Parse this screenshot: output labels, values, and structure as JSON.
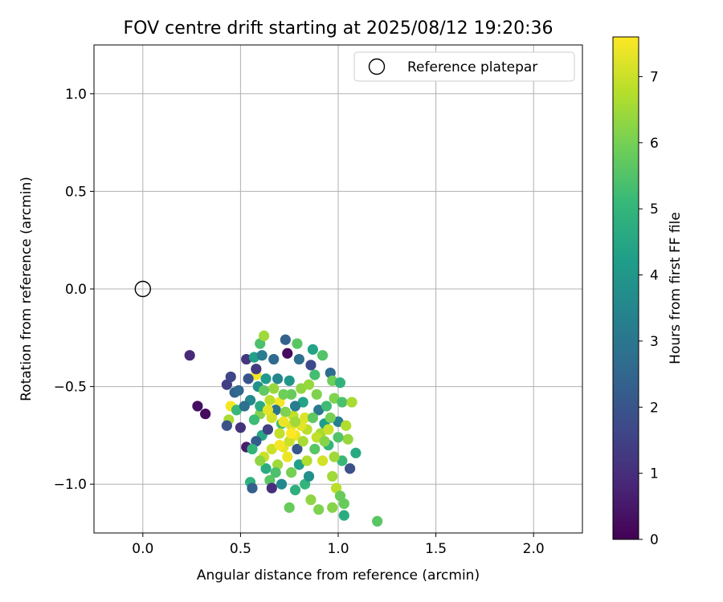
{
  "chart_data": {
    "type": "scatter",
    "title": "FOV centre drift starting at 2025/08/12 19:20:36",
    "xlabel": "Angular distance from reference (arcmin)",
    "ylabel": "Rotation from reference (arcmin)",
    "xlim": [
      -0.25,
      2.25
    ],
    "ylim": [
      -1.25,
      1.25
    ],
    "xticks": [
      0.0,
      0.5,
      1.0,
      1.5,
      2.0
    ],
    "xtick_labels": [
      "0.0",
      "0.5",
      "1.0",
      "1.5",
      "2.0"
    ],
    "yticks": [
      -1.0,
      -0.5,
      0.0,
      0.5,
      1.0
    ],
    "ytick_labels": [
      "−1.0",
      "−0.5",
      "0.0",
      "0.5",
      "1.0"
    ],
    "grid": true,
    "legend": {
      "placement": "top-right",
      "entries": [
        "Reference platepar"
      ]
    },
    "colorbar": {
      "label": "Hours from first FF file",
      "range": [
        0,
        7.6
      ],
      "ticks": [
        0,
        1,
        2,
        3,
        4,
        5,
        6,
        7
      ],
      "tick_labels": [
        "0",
        "1",
        "2",
        "3",
        "4",
        "5",
        "6",
        "7"
      ],
      "colormap": "viridis",
      "colors": [
        "#440154",
        "#482878",
        "#3e4989",
        "#31688e",
        "#26828e",
        "#1f9e89",
        "#35b779",
        "#6ece58",
        "#b5de2b",
        "#fde725"
      ]
    },
    "series": [
      {
        "name": "Reference platepar",
        "marker": "open-circle",
        "points": [
          [
            0.0,
            0.0,
            null
          ]
        ]
      },
      {
        "marker": "filled-circle",
        "points": [
          [
            0.24,
            -0.34,
            0.9
          ],
          [
            0.28,
            -0.6,
            0.3
          ],
          [
            0.32,
            -0.64,
            0.2
          ],
          [
            0.43,
            -0.49,
            1.4
          ],
          [
            0.45,
            -0.45,
            1.6
          ],
          [
            0.47,
            -0.53,
            2.4
          ],
          [
            0.44,
            -0.67,
            6.6
          ],
          [
            0.45,
            -0.6,
            7.5
          ],
          [
            0.48,
            -0.62,
            5.1
          ],
          [
            0.43,
            -0.7,
            1.9
          ],
          [
            0.53,
            -0.36,
            1.2
          ],
          [
            0.53,
            -0.81,
            0.6
          ],
          [
            0.55,
            -0.99,
            4.9
          ],
          [
            0.56,
            -1.02,
            2.3
          ],
          [
            0.57,
            -0.35,
            4.3
          ],
          [
            0.58,
            -0.44,
            7.5
          ],
          [
            0.6,
            -0.28,
            5.4
          ],
          [
            0.62,
            -0.24,
            6.5
          ],
          [
            0.61,
            -0.34,
            3.2
          ],
          [
            0.59,
            -0.5,
            3.8
          ],
          [
            0.6,
            -0.64,
            6.2
          ],
          [
            0.61,
            -0.75,
            4.5
          ],
          [
            0.62,
            -0.86,
            7.0
          ],
          [
            0.63,
            -0.92,
            4.7
          ],
          [
            0.65,
            -0.98,
            5.6
          ],
          [
            0.66,
            -1.02,
            1.0
          ],
          [
            0.67,
            -0.36,
            2.6
          ],
          [
            0.69,
            -0.46,
            3.5
          ],
          [
            0.7,
            -0.58,
            7.5
          ],
          [
            0.71,
            -0.69,
            5.2
          ],
          [
            0.72,
            -0.81,
            7.3
          ],
          [
            0.73,
            -0.26,
            2.4
          ],
          [
            0.74,
            -0.33,
            0.2
          ],
          [
            0.75,
            -0.47,
            4.0
          ],
          [
            0.76,
            -0.54,
            5.8
          ],
          [
            0.77,
            -0.65,
            6.9
          ],
          [
            0.78,
            -0.75,
            7.4
          ],
          [
            0.79,
            -0.28,
            5.6
          ],
          [
            0.8,
            -0.36,
            2.8
          ],
          [
            0.81,
            -0.51,
            6.3
          ],
          [
            0.82,
            -0.58,
            4.4
          ],
          [
            0.83,
            -0.66,
            7.2
          ],
          [
            0.84,
            -0.72,
            6.8
          ],
          [
            0.86,
            -0.39,
            1.7
          ],
          [
            0.87,
            -0.31,
            4.4
          ],
          [
            0.88,
            -0.44,
            5.3
          ],
          [
            0.89,
            -0.54,
            6.1
          ],
          [
            0.9,
            -0.62,
            3.1
          ],
          [
            0.91,
            -0.74,
            6.6
          ],
          [
            0.92,
            -0.34,
            5.5
          ],
          [
            0.96,
            -0.43,
            2.7
          ],
          [
            0.97,
            -0.47,
            5.9
          ],
          [
            1.01,
            -0.48,
            4.9
          ],
          [
            0.98,
            -0.56,
            6.1
          ],
          [
            1.02,
            -0.58,
            5.4
          ],
          [
            1.07,
            -0.58,
            6.6
          ],
          [
            1.0,
            -0.68,
            3.3
          ],
          [
            1.04,
            -0.7,
            6.7
          ],
          [
            1.05,
            -0.77,
            6.4
          ],
          [
            1.09,
            -0.84,
            4.6
          ],
          [
            1.06,
            -0.92,
            1.9
          ],
          [
            1.02,
            -0.88,
            5.1
          ],
          [
            0.98,
            -0.86,
            6.5
          ],
          [
            0.95,
            -0.8,
            5.0
          ],
          [
            0.97,
            -0.96,
            6.5
          ],
          [
            0.99,
            -1.02,
            6.8
          ],
          [
            1.01,
            -1.06,
            5.8
          ],
          [
            1.03,
            -1.1,
            5.8
          ],
          [
            1.03,
            -1.16,
            4.7
          ],
          [
            0.97,
            -1.12,
            6.2
          ],
          [
            0.9,
            -1.13,
            6.1
          ],
          [
            0.86,
            -1.08,
            6.3
          ],
          [
            0.83,
            -1.0,
            5.0
          ],
          [
            0.78,
            -1.03,
            4.8
          ],
          [
            0.75,
            -1.12,
            5.8
          ],
          [
            1.2,
            -1.19,
            5.6
          ],
          [
            0.55,
            -0.57,
            3.6
          ],
          [
            0.57,
            -0.67,
            5.2
          ],
          [
            0.58,
            -0.78,
            2.2
          ],
          [
            0.64,
            -0.72,
            1.5
          ],
          [
            0.66,
            -0.82,
            7.0
          ],
          [
            0.68,
            -0.62,
            2.9
          ],
          [
            0.69,
            -0.9,
            6.5
          ],
          [
            0.71,
            -1.0,
            3.6
          ],
          [
            0.74,
            -0.86,
            7.4
          ],
          [
            0.76,
            -0.94,
            6.0
          ],
          [
            0.79,
            -0.82,
            2.1
          ],
          [
            0.8,
            -0.9,
            4.3
          ],
          [
            0.84,
            -0.88,
            6.7
          ],
          [
            0.85,
            -0.96,
            3.8
          ],
          [
            0.88,
            -0.82,
            5.6
          ],
          [
            0.92,
            -0.88,
            7.1
          ],
          [
            0.93,
            -0.69,
            4.2
          ],
          [
            0.95,
            -0.72,
            7.0
          ],
          [
            0.94,
            -0.6,
            5.2
          ],
          [
            0.85,
            -0.49,
            6.4
          ],
          [
            0.72,
            -0.54,
            5.9
          ],
          [
            0.65,
            -0.57,
            6.8
          ],
          [
            0.63,
            -0.46,
            4.1
          ],
          [
            0.67,
            -0.51,
            6.4
          ],
          [
            0.52,
            -0.6,
            2.8
          ],
          [
            0.5,
            -0.71,
            1.1
          ],
          [
            0.56,
            -0.82,
            5.0
          ],
          [
            0.6,
            -0.88,
            6.3
          ],
          [
            0.7,
            -0.74,
            6.9
          ],
          [
            0.76,
            -0.7,
            7.2
          ],
          [
            0.82,
            -0.78,
            6.6
          ],
          [
            0.87,
            -0.66,
            5.7
          ],
          [
            0.73,
            -0.63,
            6.1
          ],
          [
            0.78,
            -0.6,
            3.2
          ],
          [
            0.66,
            -0.66,
            7.1
          ],
          [
            0.7,
            -0.8,
            7.5
          ],
          [
            0.75,
            -0.78,
            7.0
          ],
          [
            0.81,
            -0.7,
            7.3
          ],
          [
            0.68,
            -0.94,
            5.4
          ],
          [
            0.62,
            -0.52,
            5.7
          ],
          [
            0.58,
            -0.41,
            1.3
          ],
          [
            0.54,
            -0.46,
            2.0
          ],
          [
            0.49,
            -0.52,
            2.6
          ],
          [
            0.6,
            -0.6,
            4.6
          ],
          [
            0.89,
            -0.76,
            6.9
          ],
          [
            0.93,
            -0.78,
            6.2
          ],
          [
            0.96,
            -0.66,
            6.0
          ],
          [
            1.0,
            -0.76,
            5.5
          ],
          [
            0.64,
            -0.62,
            7.3
          ],
          [
            0.72,
            -0.68,
            7.4
          ],
          [
            0.76,
            -0.74,
            7.6
          ],
          [
            0.78,
            -0.68,
            6.5
          ]
        ]
      }
    ]
  }
}
